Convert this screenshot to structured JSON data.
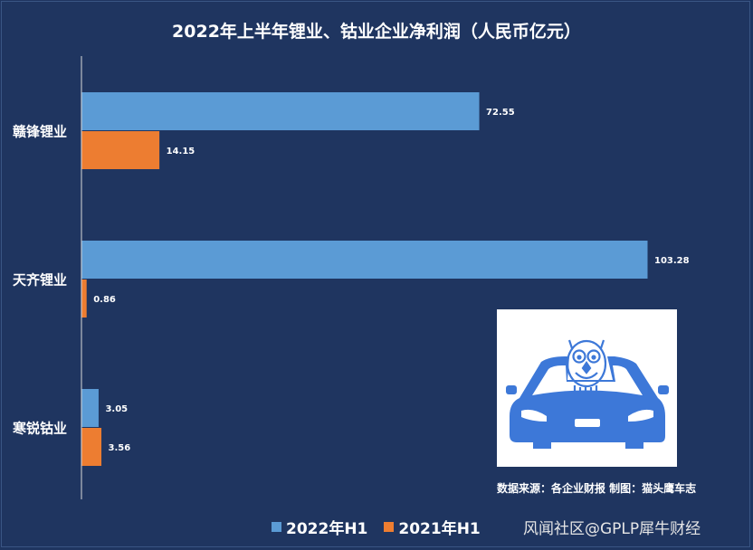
{
  "chart_data": {
    "type": "bar",
    "orientation": "horizontal",
    "title": "2022年上半年锂业、钴业企业净利润（人民币亿元）",
    "categories": [
      "赣锋锂业",
      "天齐锂业",
      "寒锐钴业"
    ],
    "series": [
      {
        "name": "2022年H1",
        "values": [
          72.55,
          103.28,
          3.05
        ],
        "color": "#5b9bd5"
      },
      {
        "name": "2021年H1",
        "values": [
          14.15,
          0.86,
          3.56
        ],
        "color": "#ed7d31"
      }
    ],
    "value_labels": [
      [
        "72.55",
        "103.28",
        "3.05"
      ],
      [
        "14.15",
        "0.86",
        "3.56"
      ]
    ],
    "xlim": [
      0,
      107
    ],
    "grid": false,
    "legend_position": "bottom"
  },
  "source_note": "数据来源：各企业财报  制图：猫头鹰车志",
  "watermark": "风闻社区@GPLP犀牛财经",
  "logo_icon": "owl-on-car-icon",
  "colors": {
    "background": "#1f3560",
    "logo_blue": "#3d78d8"
  }
}
